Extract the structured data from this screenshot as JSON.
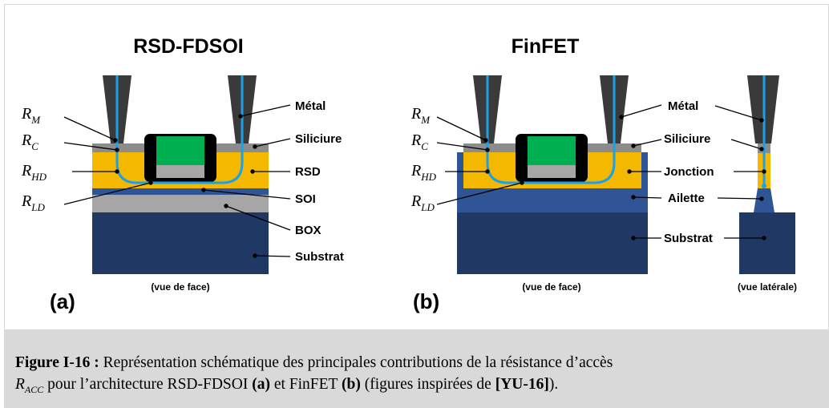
{
  "left_panel": {
    "title": "RSD-FDSOI",
    "panel_label": "(a)",
    "view_label": "(vue de face)",
    "labels": {
      "metal": "Métal",
      "silicide": "Siliciure",
      "rsd": "RSD",
      "soi": "SOI",
      "box": "BOX",
      "substrate": "Substrat"
    }
  },
  "right_panel": {
    "title": "FinFET",
    "panel_label": "(b)",
    "view_label_front": "(vue de face)",
    "view_label_side": "(vue latérale)",
    "labels": {
      "metal": "Métal",
      "silicide": "Siliciure",
      "junction": "Jonction",
      "fin": "Ailette",
      "substrate": "Substrat"
    }
  },
  "resistances": {
    "rm": {
      "base": "R",
      "sub": "M"
    },
    "rc": {
      "base": "R",
      "sub": "C"
    },
    "rhd": {
      "base": "R",
      "sub": "HD"
    },
    "rld": {
      "base": "R",
      "sub": "LD"
    }
  },
  "caption": {
    "figure_label": "Figure I-16 :",
    "text_1": " Représentation schématique des principales contributions de la résistance d’accès",
    "racc_base": "R",
    "racc_sub": "ACC",
    "text_2": " pour l’architecture RSD-FDSOI ",
    "ref_a": "(a)",
    "text_3": " et FinFET ",
    "ref_b": "(b)",
    "text_4": " (figures inspirées de ",
    "citation": "[YU-16]",
    "text_5": ")."
  },
  "colors": {
    "metal": "#3a3a3a",
    "silicide": "#8c8c8c",
    "doped": "#f5b800",
    "soi": "#a6a6a6",
    "box": "#a6a6a6",
    "substrate": "#1f3864",
    "fin": "#2f5597",
    "gate": "#00b050",
    "spacer": "#000000",
    "current_path": "#1ea0e6",
    "caption_bg": "#d9d9d9"
  }
}
